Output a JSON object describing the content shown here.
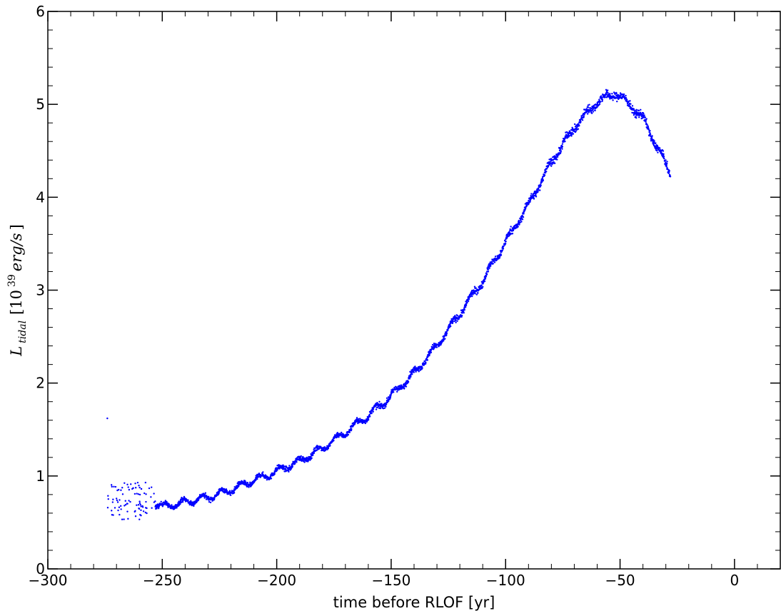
{
  "chart_data": {
    "type": "scatter",
    "title": "",
    "xlabel": "time before RLOF [yr]",
    "ylabel": {
      "symbol": "L",
      "subscript": "tidal",
      "bracket_open": "[10",
      "exponent": "39",
      "unit": "erg/s",
      "bracket_close": "]"
    },
    "xlim": [
      -300,
      20
    ],
    "ylim": [
      0,
      6
    ],
    "xticks": [
      -300,
      -250,
      -200,
      -150,
      -100,
      -50,
      0
    ],
    "xtick_labels": [
      "−300",
      "−250",
      "−200",
      "−150",
      "−100",
      "−50",
      "0"
    ],
    "yticks": [
      0,
      1,
      2,
      3,
      4,
      5,
      6
    ],
    "ytick_labels": [
      "0",
      "1",
      "2",
      "3",
      "4",
      "5",
      "6"
    ],
    "grid": false,
    "marker_color": "#0000ff",
    "series": [
      {
        "outliers": [
          [
            -274,
            1.62
          ]
        ],
        "early_scatter": {
          "x_range": [
            -274,
            -253
          ],
          "y_range": [
            0.53,
            0.93
          ]
        },
        "curve": [
          [
            -253,
            0.7
          ],
          [
            -250,
            0.67
          ],
          [
            -245,
            0.69
          ],
          [
            -240,
            0.72
          ],
          [
            -230,
            0.77
          ],
          [
            -220,
            0.85
          ],
          [
            -210,
            0.95
          ],
          [
            -200,
            1.05
          ],
          [
            -190,
            1.16
          ],
          [
            -180,
            1.3
          ],
          [
            -170,
            1.47
          ],
          [
            -160,
            1.65
          ],
          [
            -150,
            1.86
          ],
          [
            -140,
            2.11
          ],
          [
            -130,
            2.4
          ],
          [
            -120,
            2.75
          ],
          [
            -110,
            3.1
          ],
          [
            -100,
            3.52
          ],
          [
            -90,
            3.92
          ],
          [
            -80,
            4.38
          ],
          [
            -70,
            4.75
          ],
          [
            -60,
            5.03
          ],
          [
            -52,
            5.12
          ],
          [
            -45,
            4.98
          ],
          [
            -40,
            4.85
          ],
          [
            -35,
            4.6
          ],
          [
            -28,
            4.25
          ]
        ],
        "noise": 0.035
      }
    ]
  }
}
